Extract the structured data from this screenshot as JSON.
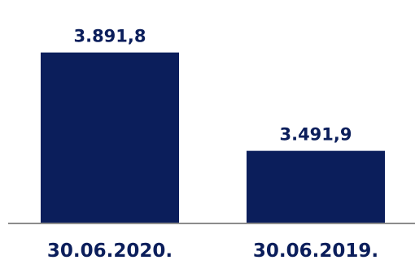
{
  "chart_data": {
    "type": "bar",
    "categories": [
      "30.06.2020.",
      "30.06.2019."
    ],
    "values": [
      3891.8,
      3491.9
    ],
    "data_labels": [
      "3.891,8",
      "3.491,9"
    ],
    "title": "",
    "xlabel": "",
    "ylabel": "",
    "ylim": [
      3200,
      3950
    ],
    "grid": false,
    "legend": "none",
    "colors": {
      "bar": "#0b1e5b",
      "text": "#0b1e5b",
      "axis": "#8c8c8c"
    }
  }
}
